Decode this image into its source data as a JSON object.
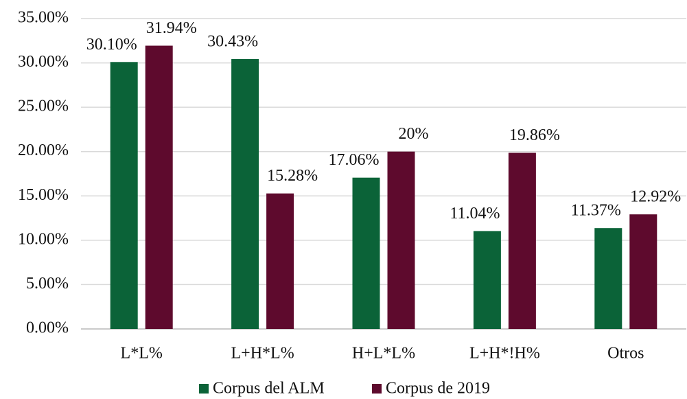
{
  "chart_data": {
    "type": "bar",
    "categories": [
      "L*L%",
      "L+H*L%",
      "H+L*L%",
      "L+H*!H%",
      "Otros"
    ],
    "series": [
      {
        "name": "Corpus del ALM",
        "color": "#0b6338",
        "values": [
          30.1,
          30.43,
          17.06,
          11.04,
          11.37
        ],
        "value_labels": [
          "30.10%",
          "30.43%",
          "17.06%",
          "11.04%",
          "11.37%"
        ]
      },
      {
        "name": "Corpus de 2019",
        "color": "#5e0a2d",
        "values": [
          31.94,
          15.28,
          20,
          19.86,
          12.92
        ],
        "value_labels": [
          "31.94%",
          "15.28%",
          "20%",
          "19.86%",
          "12.92%"
        ]
      }
    ],
    "ylim": [
      0,
      35
    ],
    "yticks": [
      {
        "value": 0,
        "label": "0.00%"
      },
      {
        "value": 5,
        "label": "5.00%"
      },
      {
        "value": 10,
        "label": "10.00%"
      },
      {
        "value": 15,
        "label": "15.00%"
      },
      {
        "value": 20,
        "label": "20.00%"
      },
      {
        "value": 25,
        "label": "25.00%"
      },
      {
        "value": 30,
        "label": "30.00%"
      },
      {
        "value": 35,
        "label": "35.00%"
      }
    ],
    "grid": true,
    "legend": "bottom"
  }
}
